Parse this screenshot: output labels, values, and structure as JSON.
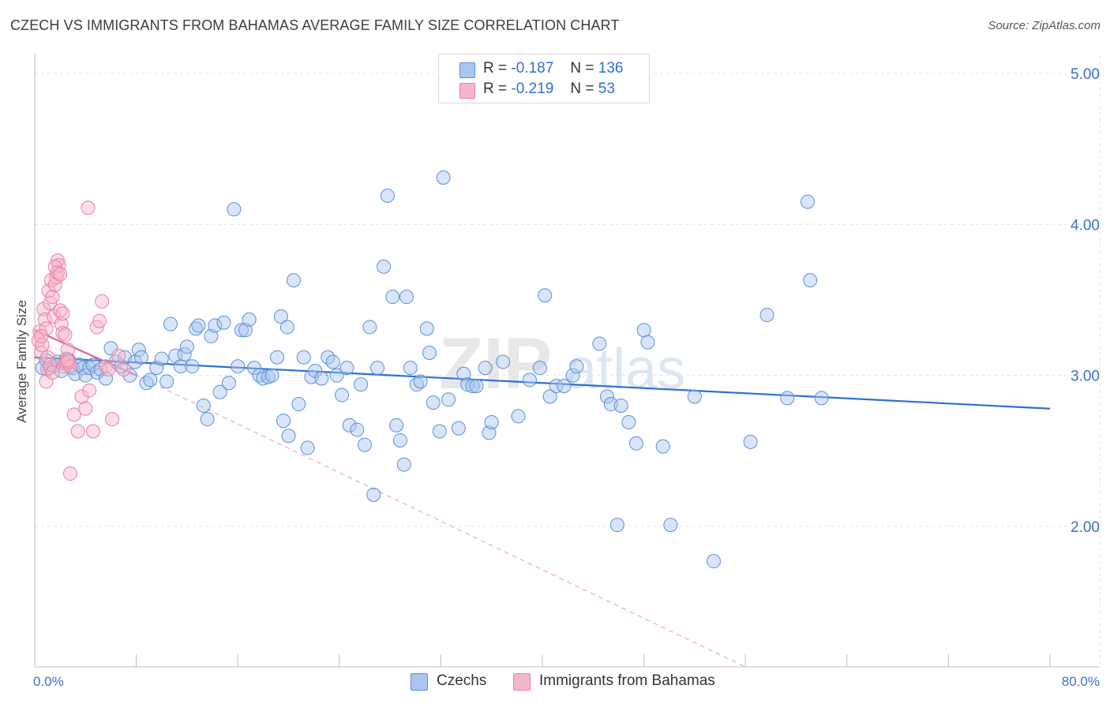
{
  "title": "CZECH VS IMMIGRANTS FROM BAHAMAS AVERAGE FAMILY SIZE CORRELATION CHART",
  "source": "Source: ZipAtlas.com",
  "watermark": "ZIPatlas",
  "colors": {
    "blue_fill": "#a9c6f0",
    "blue_stroke": "#5b8fd6",
    "blue_line": "#2f6fd0",
    "pink_fill": "#f6b6c9",
    "pink_stroke": "#e87ea0",
    "pink_line": "#e0648a",
    "grid": "#e3e3e3",
    "axis_text": "#3e6fc8"
  },
  "stats": [
    {
      "r_label": "R =",
      "r_value": "-0.187",
      "n_label": "N =",
      "n_value": "136"
    },
    {
      "r_label": "R =",
      "r_value": "-0.219",
      "n_label": "N =",
      "n_value": "53"
    }
  ],
  "legend": [
    {
      "label": "Czechs"
    },
    {
      "label": "Immigrants from Bahamas"
    }
  ],
  "chart_data": {
    "type": "scatter",
    "title": "CZECH VS IMMIGRANTS FROM BAHAMAS AVERAGE FAMILY SIZE CORRELATION CHART",
    "xlabel": "",
    "ylabel": "Average Family Size",
    "xlim": [
      0,
      80
    ],
    "ylim": [
      1.07,
      5.12
    ],
    "x_tick_labels": [
      "0.0%",
      "80.0%"
    ],
    "y_ticks": [
      2.0,
      3.0,
      4.0,
      5.0
    ],
    "y_tick_labels": [
      "2.00",
      "3.00",
      "4.00",
      "5.00"
    ],
    "grid": true,
    "legend_position": "bottom-center",
    "series": [
      {
        "name": "Czechs",
        "r": -0.187,
        "n": 136,
        "trend": {
          "x": [
            0,
            80
          ],
          "y": [
            3.12,
            2.78
          ]
        },
        "points": [
          [
            0.6,
            3.05
          ],
          [
            0.9,
            3.1
          ],
          [
            1.2,
            3.05
          ],
          [
            1.5,
            3.06
          ],
          [
            1.8,
            3.09
          ],
          [
            2.1,
            3.03
          ],
          [
            2.5,
            3.11
          ],
          [
            2.7,
            3.1
          ],
          [
            3.0,
            3.05
          ],
          [
            3.2,
            3.01
          ],
          [
            3.5,
            3.07
          ],
          [
            3.8,
            3.05
          ],
          [
            4.0,
            3.0
          ],
          [
            4.3,
            3.05
          ],
          [
            4.6,
            3.07
          ],
          [
            4.9,
            3.02
          ],
          [
            5.2,
            3.04
          ],
          [
            5.6,
            2.98
          ],
          [
            6.0,
            3.18
          ],
          [
            6.4,
            3.09
          ],
          [
            6.8,
            3.06
          ],
          [
            7.1,
            3.12
          ],
          [
            7.5,
            3.0
          ],
          [
            7.9,
            3.09
          ],
          [
            8.2,
            3.17
          ],
          [
            8.4,
            3.12
          ],
          [
            8.8,
            2.95
          ],
          [
            9.1,
            2.97
          ],
          [
            9.6,
            3.05
          ],
          [
            10.0,
            3.11
          ],
          [
            10.4,
            2.96
          ],
          [
            10.7,
            3.34
          ],
          [
            11.1,
            3.13
          ],
          [
            11.5,
            3.06
          ],
          [
            11.8,
            3.14
          ],
          [
            12.0,
            3.19
          ],
          [
            12.4,
            3.06
          ],
          [
            12.7,
            3.31
          ],
          [
            12.9,
            3.33
          ],
          [
            13.3,
            2.8
          ],
          [
            13.6,
            2.71
          ],
          [
            13.9,
            3.26
          ],
          [
            14.2,
            3.33
          ],
          [
            14.6,
            2.89
          ],
          [
            14.9,
            3.35
          ],
          [
            15.3,
            2.95
          ],
          [
            15.7,
            4.1
          ],
          [
            16.0,
            3.06
          ],
          [
            16.3,
            3.3
          ],
          [
            16.6,
            3.3
          ],
          [
            16.9,
            3.37
          ],
          [
            17.3,
            3.05
          ],
          [
            17.7,
            3.0
          ],
          [
            18.0,
            2.98
          ],
          [
            18.4,
            2.99
          ],
          [
            18.7,
            3.0
          ],
          [
            19.1,
            3.12
          ],
          [
            19.4,
            3.39
          ],
          [
            19.6,
            2.7
          ],
          [
            19.9,
            3.32
          ],
          [
            20.0,
            2.6
          ],
          [
            20.4,
            3.63
          ],
          [
            20.8,
            2.81
          ],
          [
            21.2,
            3.12
          ],
          [
            21.5,
            2.52
          ],
          [
            21.8,
            2.99
          ],
          [
            22.1,
            3.03
          ],
          [
            22.6,
            2.98
          ],
          [
            23.1,
            3.12
          ],
          [
            23.5,
            3.09
          ],
          [
            23.8,
            3.0
          ],
          [
            24.2,
            2.87
          ],
          [
            24.6,
            3.05
          ],
          [
            24.8,
            2.67
          ],
          [
            25.4,
            2.64
          ],
          [
            25.7,
            2.94
          ],
          [
            26.0,
            2.54
          ],
          [
            26.4,
            3.32
          ],
          [
            26.7,
            2.21
          ],
          [
            27.0,
            3.05
          ],
          [
            27.5,
            3.72
          ],
          [
            27.8,
            4.19
          ],
          [
            28.2,
            3.52
          ],
          [
            28.5,
            2.67
          ],
          [
            28.8,
            2.57
          ],
          [
            29.1,
            2.41
          ],
          [
            29.3,
            3.52
          ],
          [
            29.6,
            3.05
          ],
          [
            30.1,
            2.94
          ],
          [
            30.4,
            2.96
          ],
          [
            30.9,
            3.31
          ],
          [
            31.1,
            3.15
          ],
          [
            31.4,
            2.82
          ],
          [
            31.9,
            2.63
          ],
          [
            32.2,
            4.31
          ],
          [
            32.6,
            2.84
          ],
          [
            33.4,
            2.65
          ],
          [
            33.8,
            3.01
          ],
          [
            34.1,
            2.94
          ],
          [
            34.5,
            2.93
          ],
          [
            34.8,
            2.93
          ],
          [
            35.5,
            3.05
          ],
          [
            35.8,
            2.62
          ],
          [
            36.0,
            2.69
          ],
          [
            36.9,
            3.09
          ],
          [
            38.1,
            2.73
          ],
          [
            39.0,
            2.97
          ],
          [
            39.8,
            3.05
          ],
          [
            40.2,
            3.53
          ],
          [
            40.6,
            2.86
          ],
          [
            41.1,
            2.93
          ],
          [
            41.7,
            2.93
          ],
          [
            42.4,
            3.0
          ],
          [
            42.7,
            3.06
          ],
          [
            44.5,
            3.21
          ],
          [
            45.1,
            2.86
          ],
          [
            45.4,
            2.81
          ],
          [
            45.9,
            2.01
          ],
          [
            46.2,
            2.8
          ],
          [
            46.8,
            2.69
          ],
          [
            47.4,
            2.55
          ],
          [
            48.0,
            3.3
          ],
          [
            48.3,
            3.22
          ],
          [
            49.5,
            2.53
          ],
          [
            50.1,
            2.01
          ],
          [
            52.0,
            2.86
          ],
          [
            53.5,
            1.77
          ],
          [
            56.4,
            2.56
          ],
          [
            57.7,
            3.4
          ],
          [
            59.3,
            2.85
          ],
          [
            60.9,
            4.15
          ],
          [
            61.1,
            3.63
          ],
          [
            62.0,
            2.85
          ]
        ]
      },
      {
        "name": "Immigrants from Bahamas",
        "r": -0.219,
        "n": 53,
        "trend": {
          "x": [
            0,
            8
          ],
          "y": [
            3.3,
            3.0
          ]
        },
        "trend_extended": {
          "x": [
            8,
            56
          ],
          "y": [
            3.0,
            1.07
          ]
        },
        "points": [
          [
            0.3,
            3.23
          ],
          [
            0.4,
            3.29
          ],
          [
            0.5,
            3.15
          ],
          [
            0.6,
            3.2
          ],
          [
            0.7,
            3.44
          ],
          [
            0.8,
            3.37
          ],
          [
            0.9,
            3.31
          ],
          [
            1.0,
            3.12
          ],
          [
            1.1,
            3.56
          ],
          [
            1.2,
            3.48
          ],
          [
            1.3,
            3.63
          ],
          [
            1.4,
            3.52
          ],
          [
            1.5,
            3.39
          ],
          [
            1.6,
            3.6
          ],
          [
            1.7,
            3.65
          ],
          [
            1.8,
            3.76
          ],
          [
            1.9,
            3.73
          ],
          [
            2.0,
            3.43
          ],
          [
            2.1,
            3.34
          ],
          [
            2.2,
            3.28
          ],
          [
            2.3,
            3.06
          ],
          [
            2.4,
            3.08
          ],
          [
            2.5,
            3.09
          ],
          [
            2.6,
            3.17
          ],
          [
            2.7,
            3.09
          ],
          [
            2.8,
            3.06
          ],
          [
            0.9,
            2.96
          ],
          [
            1.0,
            3.04
          ],
          [
            1.2,
            3.07
          ],
          [
            1.4,
            3.02
          ],
          [
            1.6,
            3.72
          ],
          [
            1.8,
            3.68
          ],
          [
            2.0,
            3.67
          ],
          [
            2.2,
            3.41
          ],
          [
            2.4,
            3.27
          ],
          [
            2.6,
            3.1
          ],
          [
            2.8,
            2.35
          ],
          [
            3.1,
            2.74
          ],
          [
            3.4,
            2.63
          ],
          [
            3.7,
            2.86
          ],
          [
            4.0,
            2.78
          ],
          [
            4.3,
            2.9
          ],
          [
            4.6,
            2.63
          ],
          [
            4.9,
            3.32
          ],
          [
            5.1,
            3.36
          ],
          [
            5.3,
            3.49
          ],
          [
            5.6,
            3.06
          ],
          [
            5.8,
            3.04
          ],
          [
            6.1,
            2.71
          ],
          [
            6.6,
            3.13
          ],
          [
            7.0,
            3.04
          ],
          [
            4.2,
            4.11
          ],
          [
            0.5,
            3.26
          ]
        ]
      }
    ]
  }
}
